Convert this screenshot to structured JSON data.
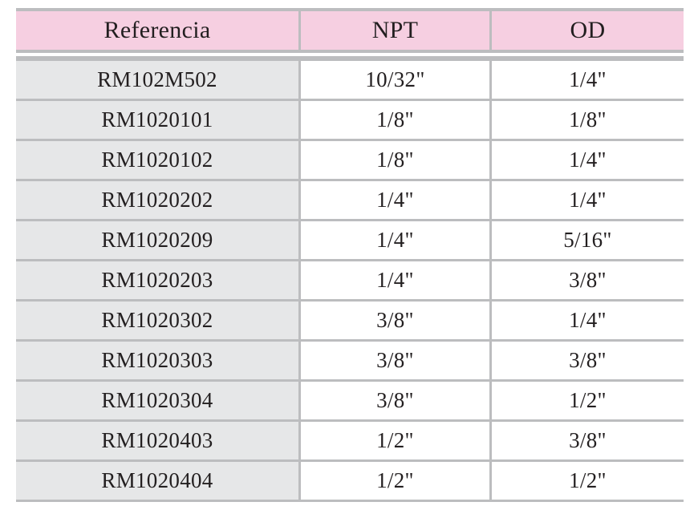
{
  "table": {
    "headers": [
      "Referencia",
      "NPT",
      "OD"
    ],
    "rows": [
      [
        "RM102M502",
        "10/32\"",
        "1/4\""
      ],
      [
        "RM1020101",
        "1/8\"",
        "1/8\""
      ],
      [
        "RM1020102",
        "1/8\"",
        "1/4\""
      ],
      [
        "RM1020202",
        "1/4\"",
        "1/4\""
      ],
      [
        "RM1020209",
        "1/4\"",
        "5/16\""
      ],
      [
        "RM1020203",
        "1/4\"",
        "3/8\""
      ],
      [
        "RM1020302",
        "3/8\"",
        "1/4\""
      ],
      [
        "RM1020303",
        "3/8\"",
        "3/8\""
      ],
      [
        "RM1020304",
        "3/8\"",
        "1/2\""
      ],
      [
        "RM1020403",
        "1/2\"",
        "3/8\""
      ],
      [
        "RM1020404",
        "1/2\"",
        "1/2\""
      ]
    ]
  },
  "colors": {
    "header_bg": "#f6cfe1",
    "first_column_bg": "#e6e7e8",
    "rule": "#bcbdbf",
    "text": "#231f20"
  }
}
